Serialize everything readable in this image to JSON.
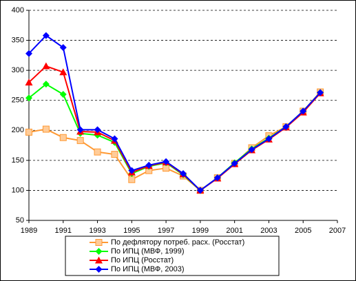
{
  "chart_data": {
    "type": "line",
    "x": [
      1989,
      1990,
      1991,
      1992,
      1993,
      1994,
      1995,
      1996,
      1997,
      1998,
      1999,
      2000,
      2001,
      2002,
      2003,
      2004,
      2005,
      2006
    ],
    "xlim": [
      1989,
      2007
    ],
    "xticks": [
      1989,
      1991,
      1993,
      1995,
      1997,
      1999,
      2001,
      2003,
      2005,
      2007
    ],
    "ylim": [
      50,
      400
    ],
    "yticks": [
      50,
      100,
      150,
      200,
      250,
      300,
      350,
      400
    ],
    "grid": true,
    "legend": "bottom",
    "series": [
      {
        "name": "По дефлятору потреб. расх. (Росстат)",
        "color": "#ff9933",
        "marker": "square",
        "values": [
          197,
          202,
          188,
          183,
          164,
          160,
          118,
          133,
          137,
          124,
          100,
          121,
          145,
          171,
          191,
          206,
          232,
          264
        ]
      },
      {
        "name": "По ИПЦ (МВФ, 1999)",
        "color": "#00ff00",
        "marker": "diamond",
        "values": [
          254,
          277,
          260,
          195,
          192,
          180,
          128,
          140,
          146,
          126,
          100,
          121,
          146,
          169,
          187,
          206,
          232,
          263
        ]
      },
      {
        "name": "По ИПЦ (Росстат)",
        "color": "#ff0000",
        "marker": "triangle",
        "values": [
          280,
          307,
          297,
          198,
          197,
          183,
          130,
          141,
          147,
          127,
          100,
          120,
          144,
          167,
          185,
          205,
          230,
          262
        ]
      },
      {
        "name": "По ИПЦ (МВФ, 2003)",
        "color": "#0000ff",
        "marker": "diamond",
        "values": [
          328,
          358,
          338,
          201,
          201,
          186,
          133,
          142,
          148,
          128,
          100,
          121,
          145,
          168,
          186,
          206,
          232,
          263
        ]
      }
    ]
  }
}
